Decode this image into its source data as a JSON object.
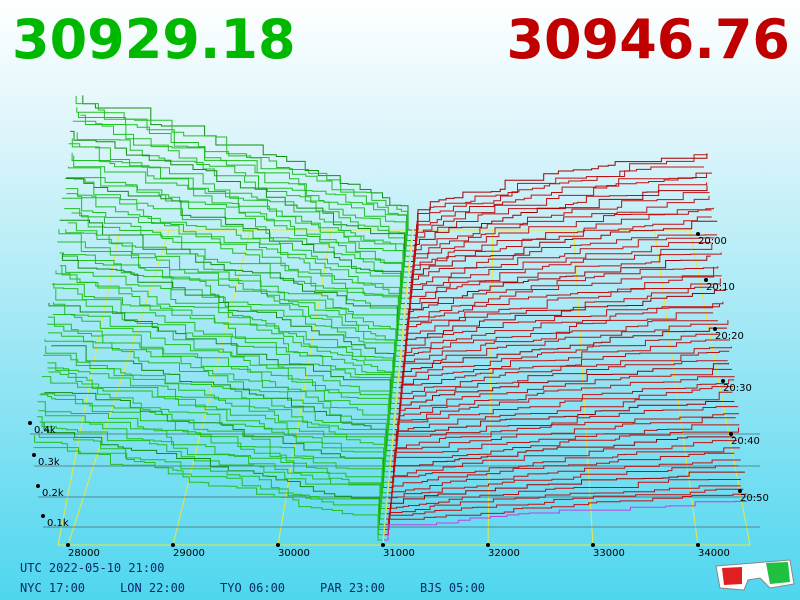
{
  "header": {
    "bid_price": "30929.18",
    "ask_price": "30946.76"
  },
  "price_axis": {
    "ticks": [
      28000,
      29000,
      30000,
      31000,
      32000,
      33000,
      34000
    ]
  },
  "volume_axis": {
    "ticks": [
      "0.4k",
      "0.3k",
      "0.2k",
      "0.1k"
    ]
  },
  "time_axis": {
    "ticks": [
      "20:00",
      "20:10",
      "20:20",
      "20:30",
      "20:40",
      "20:50"
    ]
  },
  "clock": {
    "utc": "UTC 2022-05-10 21:00",
    "cities": [
      "NYC 17:00",
      "LON 22:00",
      "TYO 06:00",
      "PAR 23:00",
      "BJS 05:00"
    ]
  }
}
